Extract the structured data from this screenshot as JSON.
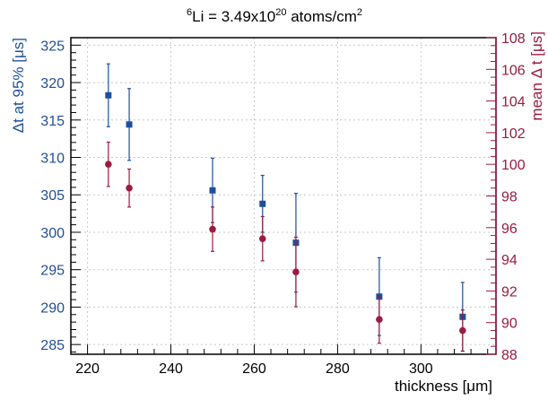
{
  "chart_data": {
    "type": "scatter",
    "title": {
      "base": "Li = 3.49x10",
      "sup_prefix": "6",
      "exponent": "20",
      "unit_base": " atoms/cm",
      "unit_sup": "2"
    },
    "xlabel": "thickness [μm]",
    "ylabel_left": "Δt at 95% [μs]",
    "ylabel_right": "mean Δ t [μs]",
    "xlim": [
      216,
      318
    ],
    "ylim_left": [
      283.7,
      326
    ],
    "ylim_right": [
      88,
      108
    ],
    "x_ticks": [
      220,
      240,
      260,
      280,
      300
    ],
    "y_left_ticks": [
      285,
      290,
      295,
      300,
      305,
      310,
      315,
      320,
      325
    ],
    "y_right_ticks": [
      88,
      90,
      92,
      94,
      96,
      98,
      100,
      102,
      104,
      106,
      108
    ],
    "grid": true,
    "colors": {
      "left_series": "#1f4e9c",
      "right_series": "#9c1a40",
      "grid": "#c8c8c8"
    },
    "series": [
      {
        "axis": "left",
        "marker": "square",
        "x": [
          225,
          230,
          250,
          262,
          270,
          290,
          310
        ],
        "y": [
          318.3,
          314.4,
          305.6,
          303.8,
          298.6,
          291.4,
          288.7
        ],
        "err": [
          4.2,
          4.8,
          4.3,
          3.8,
          6.6,
          5.2,
          4.6
        ]
      },
      {
        "axis": "right",
        "marker": "circle",
        "x": [
          225,
          230,
          250,
          262,
          270,
          290,
          310
        ],
        "y": [
          100.0,
          98.5,
          95.9,
          95.3,
          93.2,
          90.2,
          89.5
        ],
        "err": [
          1.4,
          1.2,
          1.4,
          1.4,
          2.2,
          1.5,
          1.3
        ]
      }
    ]
  }
}
